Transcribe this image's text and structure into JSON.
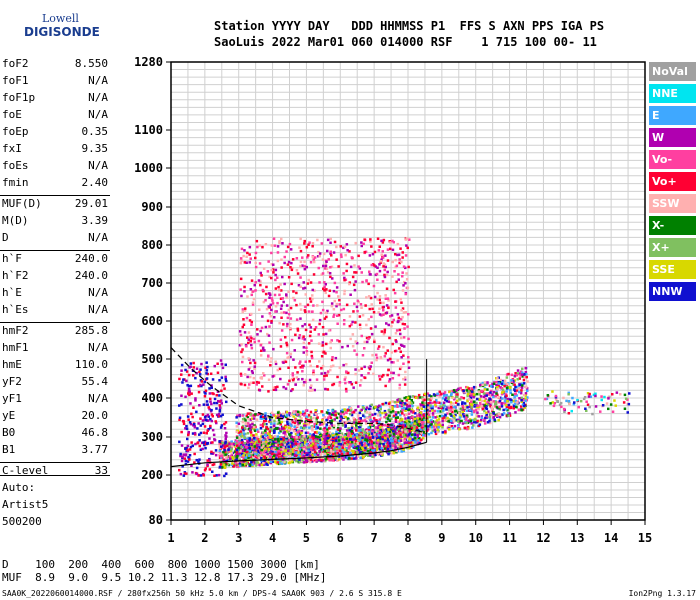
{
  "logo": {
    "line1": "Lowell",
    "line2": "DIGISONDE"
  },
  "header": {
    "line1": "Station YYYY DAY   DDD HHMMSS P1  FFS S AXN PPS IGA PS",
    "line2": "SaoLuis 2022 Mar01 060 014000 RSF    1 715 100 00- 11"
  },
  "params": [
    {
      "k": "foF2",
      "v": "8.550"
    },
    {
      "k": "foF1",
      "v": "N/A"
    },
    {
      "k": "foF1p",
      "v": "N/A"
    },
    {
      "k": "foE",
      "v": "N/A"
    },
    {
      "k": "foEp",
      "v": "0.35"
    },
    {
      "k": "fxI",
      "v": "9.35"
    },
    {
      "k": "foEs",
      "v": "N/A"
    },
    {
      "k": "fmin",
      "v": "2.40"
    },
    {
      "k": "MUF(D)",
      "v": "29.01"
    },
    {
      "k": "M(D)",
      "v": "3.39"
    },
    {
      "k": "D",
      "v": "N/A"
    },
    {
      "k": "h`F",
      "v": "240.0"
    },
    {
      "k": "h`F2",
      "v": "240.0"
    },
    {
      "k": "h`E",
      "v": "N/A"
    },
    {
      "k": "h`Es",
      "v": "N/A"
    },
    {
      "k": "hmF2",
      "v": "285.8"
    },
    {
      "k": "hmF1",
      "v": "N/A"
    },
    {
      "k": "hmE",
      "v": "110.0"
    },
    {
      "k": "yF2",
      "v": "55.4"
    },
    {
      "k": "yF1",
      "v": "N/A"
    },
    {
      "k": "yE",
      "v": "20.0"
    },
    {
      "k": "B0",
      "v": "46.8"
    },
    {
      "k": "B1",
      "v": "3.77"
    },
    {
      "k": "C-level",
      "v": "33"
    }
  ],
  "auto": {
    "l1": "Auto:",
    "l2": "Artist5",
    "l3": "500200"
  },
  "legend": [
    {
      "label": "NoVal",
      "color": "#a0a0a0"
    },
    {
      "label": "NNE",
      "color": "#00e5f0"
    },
    {
      "label": "E",
      "color": "#3fa8ff"
    },
    {
      "label": "W",
      "color": "#b000b0"
    },
    {
      "label": "Vo-",
      "color": "#ff3fa0"
    },
    {
      "label": "Vo+",
      "color": "#ff0033"
    },
    {
      "label": "SSW",
      "color": "#ffb0b0"
    },
    {
      "label": "X-",
      "color": "#008000"
    },
    {
      "label": "X+",
      "color": "#80c060"
    },
    {
      "label": "SSE",
      "color": "#d8d800"
    },
    {
      "label": "NNW",
      "color": "#1010d0"
    }
  ],
  "footer": {
    "d_line": "D    100  200  400  600  800 1000 1500 3000 [km]",
    "muf_line": "MUF  8.9  9.0  9.5 10.2 11.3 12.8 17.3 29.0 [MHz]",
    "file_line": "SAA0K_2022060014000.RSF / 280fx256h 50 kHz 5.0 km / DPS-4 SAA0K 903 / 2.6 S 315.8 E",
    "version": "Ion2Png 1.3.17"
  },
  "chart_data": {
    "type": "scatter",
    "x_ticks": [
      "1",
      "2",
      "3",
      "4",
      "5",
      "6",
      "7",
      "8",
      "9",
      "10",
      "11",
      "12",
      "13",
      "14",
      "15"
    ],
    "y_ticks": [
      "80",
      "200",
      "300",
      "400",
      "500",
      "600",
      "700",
      "800",
      "900",
      "1000",
      "1100",
      "1280"
    ],
    "xlim": [
      1,
      15
    ],
    "ylim": [
      80,
      1280
    ],
    "grid": true,
    "echo_traces": [
      {
        "name": "o-trace",
        "x": [
          2.4,
          3,
          4,
          5,
          6,
          7,
          7.8,
          8.3,
          8.55
        ],
        "y": [
          242,
          246,
          252,
          258,
          264,
          272,
          285,
          305,
          340
        ]
      },
      {
        "name": "x-trace",
        "x": [
          2.9,
          4,
          5,
          6,
          7,
          8,
          9,
          10,
          10.5,
          11,
          11.5
        ],
        "y": [
          285,
          290,
          295,
          300,
          310,
          330,
          345,
          360,
          375,
          390,
          410
        ]
      }
    ],
    "model_curves": [
      {
        "name": "profile",
        "x": [
          1,
          2,
          3,
          4,
          5,
          6,
          7,
          7.5,
          8,
          8.3,
          8.55
        ],
        "y": [
          222,
          232,
          237,
          241,
          245,
          250,
          258,
          264,
          273,
          280,
          286
        ]
      },
      {
        "name": "dashed-profile",
        "x": [
          1,
          1.6,
          2.2,
          3,
          4,
          5,
          6,
          7,
          7.6,
          8.1,
          8.55
        ],
        "y": [
          530,
          475,
          430,
          380,
          350,
          340,
          335,
          335,
          330,
          320,
          310
        ]
      }
    ]
  }
}
